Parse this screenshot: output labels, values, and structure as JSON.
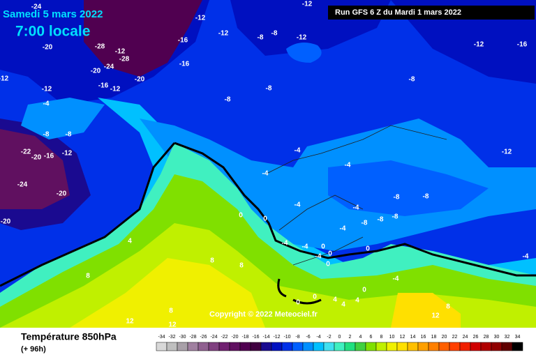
{
  "header": {
    "date": "Samedi 5 mars 2022",
    "time": "7:00 locale",
    "run": "Run GFS 6 Z du Mardi 1 mars 2022"
  },
  "copyright": "Copyright © 2022 Meteociel.fr",
  "footer": {
    "title": "Température 850hPa",
    "range": "(+ 96h)"
  },
  "scale": {
    "values": [
      -34,
      -32,
      -30,
      -28,
      -26,
      -24,
      -22,
      -20,
      -18,
      -16,
      -14,
      -12,
      -10,
      -8,
      -6,
      -4,
      -2,
      0,
      2,
      4,
      6,
      8,
      10,
      12,
      14,
      16,
      18,
      20,
      22,
      24,
      26,
      28,
      30,
      32,
      34
    ],
    "colors": [
      "#d8d8d8",
      "#bfbfbf",
      "#a8a0a8",
      "#a080a0",
      "#906090",
      "#804080",
      "#702070",
      "#601060",
      "#500050",
      "#400040",
      "#1a0a90",
      "#0010c0",
      "#0030e8",
      "#0060ff",
      "#0090ff",
      "#00c0ff",
      "#40e0f0",
      "#40f0c0",
      "#20e080",
      "#40d040",
      "#80e000",
      "#c0f000",
      "#f0f000",
      "#ffe000",
      "#ffc000",
      "#ffa000",
      "#ff8000",
      "#ff6000",
      "#ff4000",
      "#f02000",
      "#d00000",
      "#b00000",
      "#900000",
      "#600000",
      "#000000"
    ]
  },
  "map": {
    "labels": [
      "-24",
      "-12",
      "-12",
      "-12",
      "-8",
      "-12",
      "-8",
      "-16",
      "-28",
      "-12",
      "-28",
      "-20",
      "-24",
      "-20",
      "-16",
      "-12",
      "-16",
      "-12",
      "-12",
      "-20",
      "-8",
      "-8",
      "-4",
      "-12",
      "-16",
      "-8",
      "-8",
      "-8",
      "-12",
      "-22",
      "-20",
      "-16",
      "-12",
      "-24",
      "-20",
      "-20",
      "-4",
      "-4",
      "-4",
      "-4",
      "-4",
      "-8",
      "-8",
      "-8",
      "-8",
      "-8",
      "-4",
      "0",
      "0",
      "4",
      "-4",
      "-4",
      "0",
      "0",
      "0",
      "-4",
      "0",
      "-4",
      "8",
      "8",
      "8",
      "0",
      "0",
      "4",
      "4",
      "4",
      "0",
      "8",
      "8",
      "12",
      "12",
      "8",
      "12",
      "-4"
    ]
  }
}
